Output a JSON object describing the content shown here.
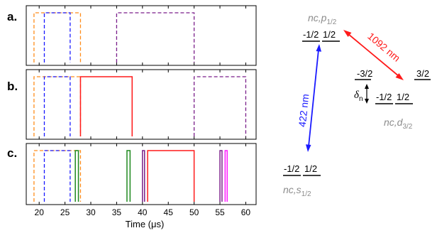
{
  "colors": {
    "orange": "#ff8c1a",
    "blue": "#1a1aff",
    "purple": "#7a1f8a",
    "red": "#ff1a1a",
    "green": "#1f8a1f",
    "magenta": "#ff1aff",
    "gray": "#8c8c8c"
  },
  "panels": [
    {
      "label": "a.",
      "pulses": [
        {
          "color": "orange",
          "dashed": true,
          "start": 19,
          "end": 28
        },
        {
          "color": "blue",
          "dashed": true,
          "start": 21,
          "end": 26
        },
        {
          "color": "purple",
          "dashed": true,
          "start": 35,
          "end": 50
        }
      ]
    },
    {
      "label": "b.",
      "pulses": [
        {
          "color": "orange",
          "dashed": true,
          "start": 19,
          "end": 28
        },
        {
          "color": "blue",
          "dashed": true,
          "start": 21,
          "end": 26
        },
        {
          "color": "red",
          "dashed": false,
          "start": 28,
          "end": 38
        },
        {
          "color": "purple",
          "dashed": true,
          "start": 50,
          "end": 60
        }
      ]
    },
    {
      "label": "c.",
      "pulses": [
        {
          "color": "orange",
          "dashed": true,
          "start": 19,
          "end": 28
        },
        {
          "color": "blue",
          "dashed": true,
          "start": 21,
          "end": 26
        },
        {
          "color": "green",
          "dashed": false,
          "start": 27,
          "end": 27.6
        },
        {
          "color": "green",
          "dashed": false,
          "start": 37,
          "end": 37.6
        },
        {
          "color": "purple",
          "dashed": false,
          "start": 40,
          "end": 40.4
        },
        {
          "color": "red",
          "dashed": false,
          "start": 41,
          "end": 50
        },
        {
          "color": "purple",
          "dashed": false,
          "start": 55,
          "end": 55.4
        },
        {
          "color": "magenta",
          "dashed": false,
          "start": 56,
          "end": 56.4
        }
      ]
    }
  ],
  "axis": {
    "title": "Time (μs)",
    "xlim": [
      17.5,
      62
    ],
    "ticks": [
      "20",
      "25",
      "30",
      "35",
      "40",
      "45",
      "50",
      "55",
      "60"
    ]
  },
  "levels": {
    "p_name": "nc,p",
    "p_sub": "1/2",
    "p_m1": "-1/2",
    "p_m2": "1/2",
    "d_name": "nc,d",
    "d_sub": "3/2",
    "d_m1": "-1/2",
    "d_m2": "1/2",
    "d_m3": "-3/2",
    "d_m4": "3/2",
    "s_name": "nc,s",
    "s_sub": "1/2",
    "s_m1": "-1/2",
    "s_m2": "1/2",
    "delta": "δ",
    "delta_sub": "n",
    "wl_blue": "422 nm",
    "wl_red": "1092 nm"
  }
}
